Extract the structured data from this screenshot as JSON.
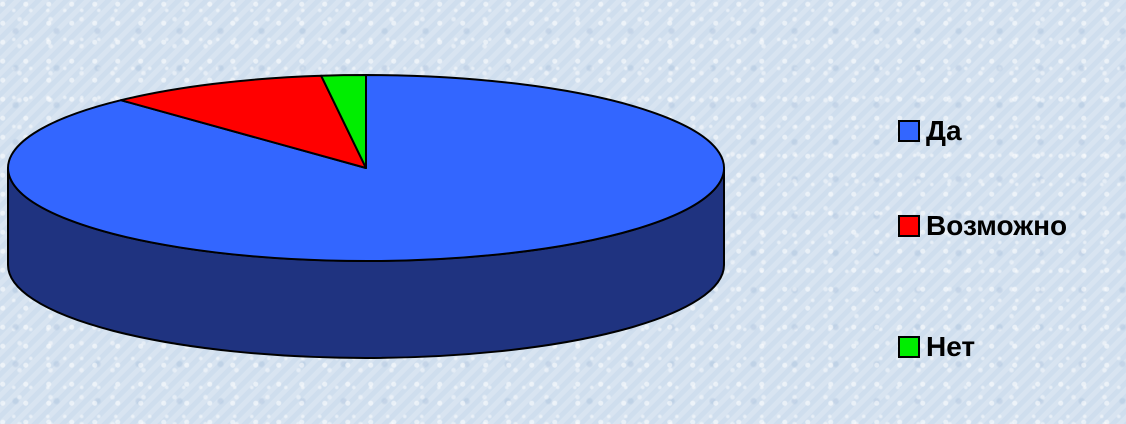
{
  "chart_data": {
    "type": "pie",
    "style": "3d",
    "title": "",
    "categories": [
      "Да",
      "Возможно",
      "Нет"
    ],
    "values": [
      88,
      10,
      2
    ],
    "colors": [
      "#3366ff",
      "#ff0000",
      "#00ee00"
    ],
    "side_colors": [
      "#1f3380",
      "#8b0000",
      "#007a00"
    ],
    "legend_position": "right",
    "grid": false
  }
}
